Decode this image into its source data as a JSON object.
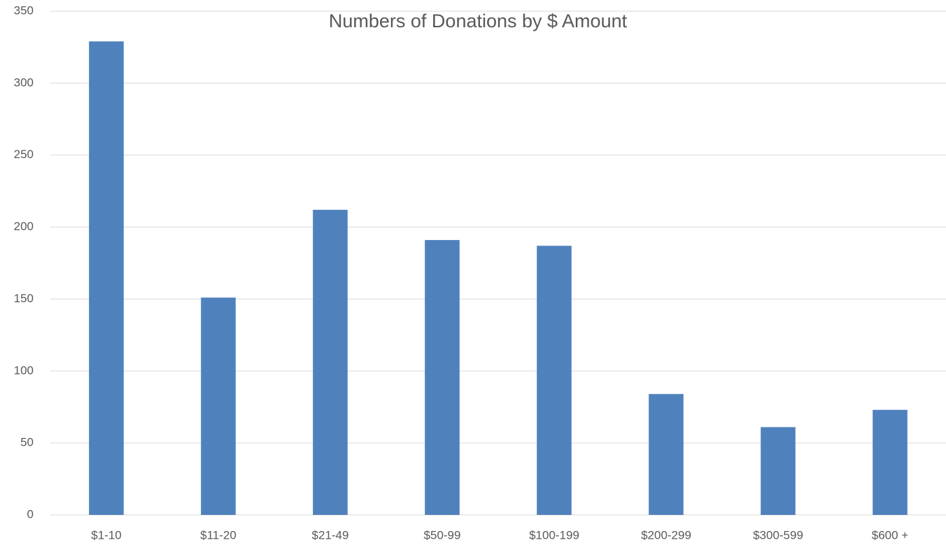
{
  "chart_data": {
    "type": "bar",
    "title": "Numbers of Donations by $ Amount",
    "categories": [
      "$1-10",
      "$11-20",
      "$21-49",
      "$50-99",
      "$100-199",
      "$200-299",
      "$300-599",
      "$600 +"
    ],
    "values": [
      329,
      151,
      212,
      191,
      187,
      84,
      61,
      73
    ],
    "color": "#4f81bd",
    "ylim": [
      0,
      350
    ],
    "yticks": [
      0,
      50,
      100,
      150,
      200,
      250,
      300,
      350
    ],
    "grid": true
  }
}
